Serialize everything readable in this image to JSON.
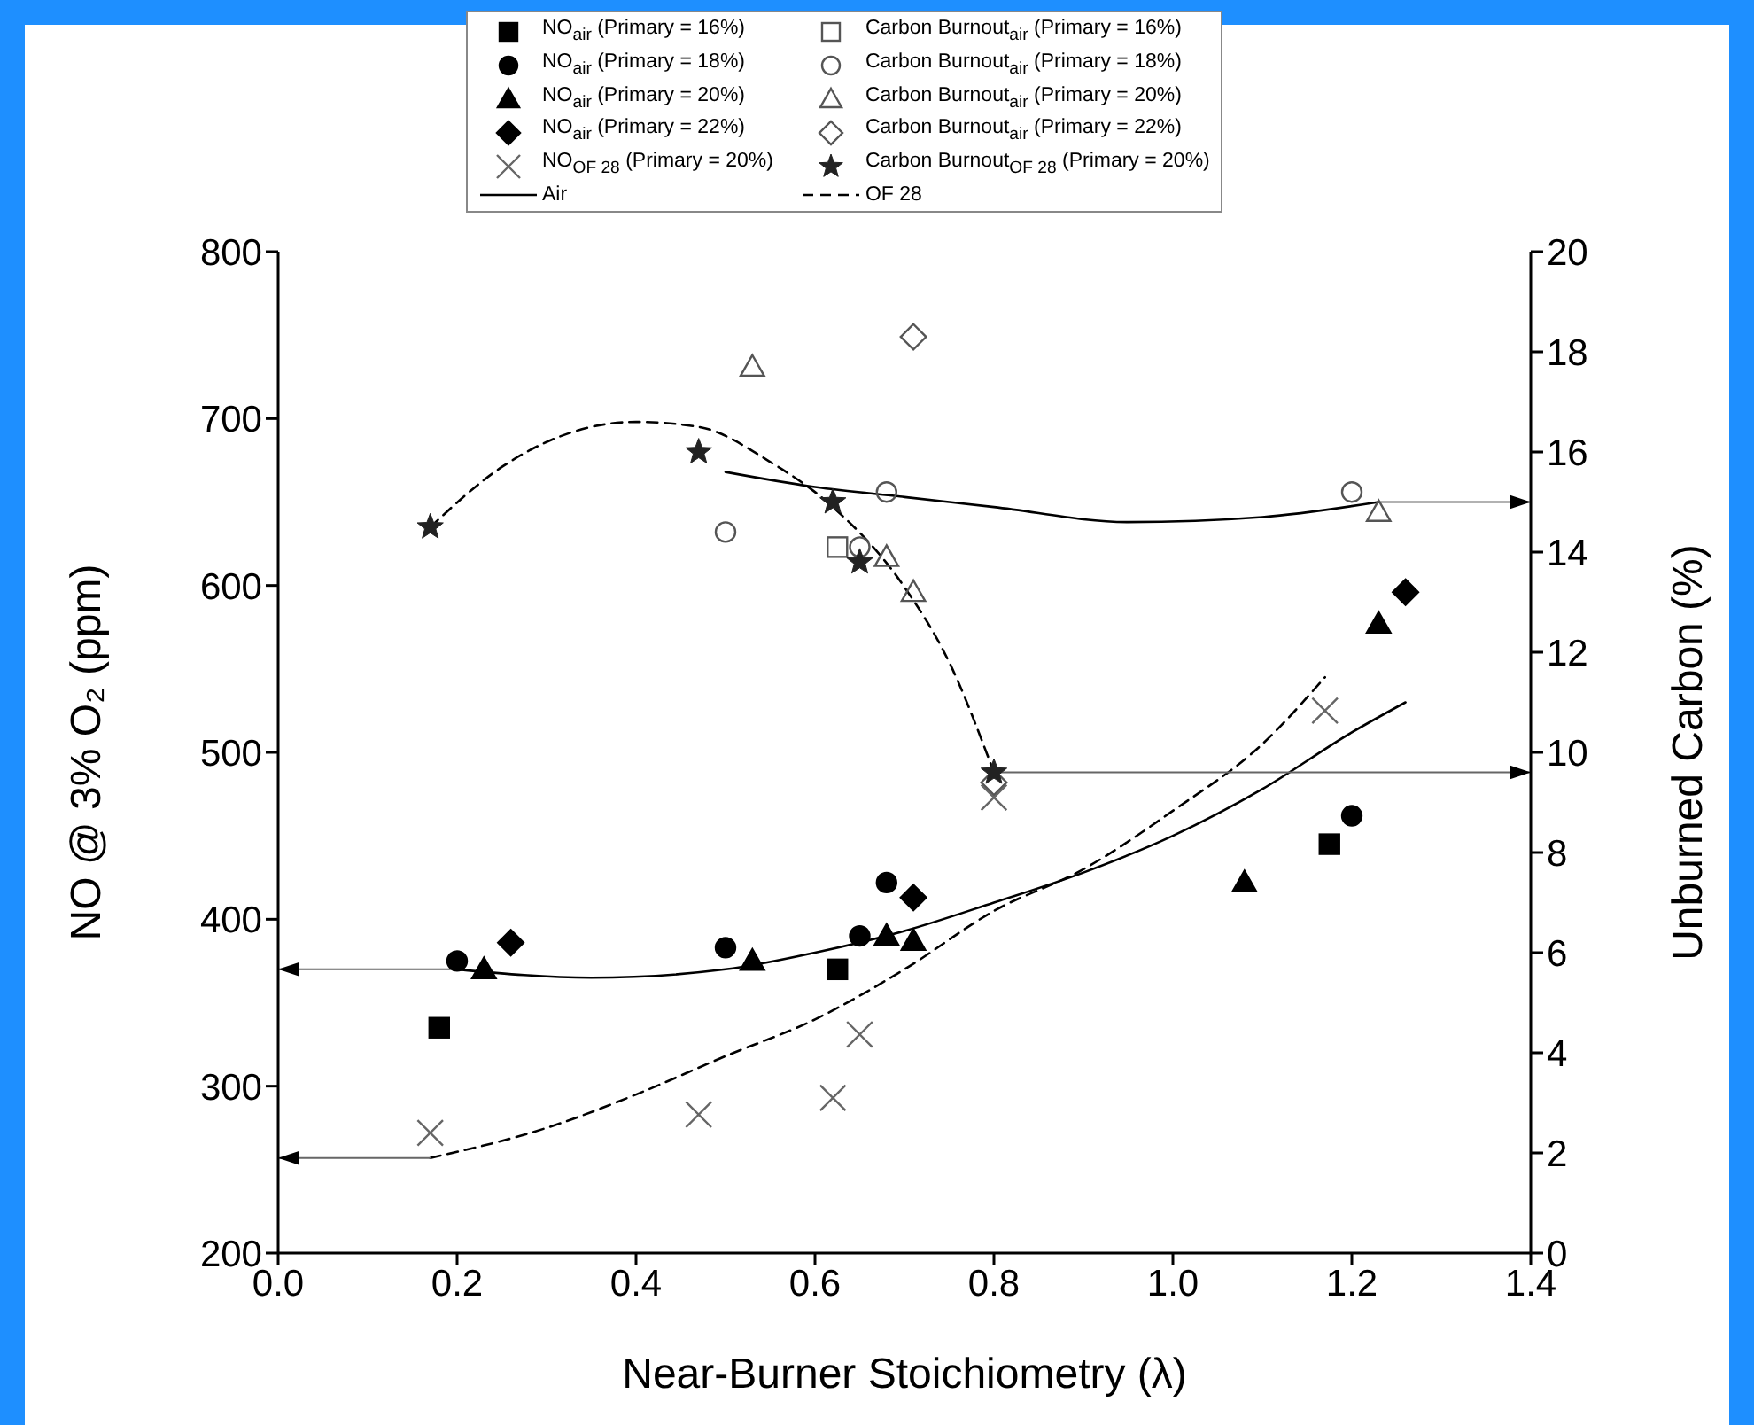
{
  "chart_data": {
    "type": "scatter",
    "xlabel": "Near-Burner Stoichiometry (λ)",
    "ylabel": "NO @ 3% O₂ (ppm)",
    "y2label": "Unburned Carbon (%)",
    "xlim": [
      0,
      1.4
    ],
    "xticks": [
      {
        "value": 0,
        "label": "0.0"
      },
      0.2,
      0.4,
      0.6,
      0.8,
      {
        "value": 1,
        "label": "1.0"
      },
      1.2,
      1.4
    ],
    "ylim": [
      200,
      800
    ],
    "yticks": [
      200,
      300,
      400,
      500,
      600,
      700,
      800
    ],
    "y2lim": [
      0,
      20
    ],
    "y2ticks": [
      0,
      2,
      4,
      6,
      8,
      10,
      12,
      14,
      16,
      18,
      20
    ],
    "legend": "top",
    "series": [
      {
        "name": "NO$_{air}$ (Primary = 16%)",
        "color": "#000000",
        "marker": "square",
        "x": [
          0.18,
          0.625,
          1.175
        ],
        "values": [
          335,
          370,
          445
        ]
      },
      {
        "name": "Carbon Burnout$_{air}$ (Primary = 16%)",
        "color": "#555555",
        "marker": "square",
        "axis": "y2",
        "x": [
          0.625
        ],
        "values": [
          14.1
        ]
      },
      {
        "name": "NO$_{air}$ (Primary = 18%)",
        "color": "#000000",
        "marker": "circle",
        "x": [
          0.2,
          0.5,
          0.65,
          0.68,
          1.2
        ],
        "values": [
          375,
          383,
          390,
          422,
          462
        ]
      },
      {
        "name": "Carbon Burnout$_{air}$ (Primary = 18%)",
        "color": "#555555",
        "marker": "circle",
        "axis": "y2",
        "x": [
          0.5,
          0.65,
          0.68,
          1.2
        ],
        "values": [
          14.4,
          14.1,
          15.2,
          15.2
        ]
      },
      {
        "name": "NO$_{air}$ (Primary = 20%)",
        "color": "#000000",
        "marker": "triangle",
        "x": [
          0.23,
          0.53,
          0.68,
          0.71,
          1.08,
          1.23
        ],
        "values": [
          370,
          375,
          390,
          387,
          422,
          577
        ]
      },
      {
        "name": "Carbon Burnout$_{air}$ (Primary = 20%)",
        "color": "#555555",
        "marker": "triangle",
        "axis": "y2",
        "x": [
          0.53,
          0.68,
          0.71,
          1.23
        ],
        "values": [
          17.7,
          13.9,
          13.2,
          14.8
        ]
      },
      {
        "name": "NO$_{air}$ (Primary = 22%)",
        "color": "#000000",
        "marker": "diamond",
        "x": [
          0.26,
          0.71,
          1.26
        ],
        "values": [
          386,
          413,
          596
        ]
      },
      {
        "name": "Carbon Burnout$_{air}$ (Primary = 22%)",
        "color": "#555555",
        "marker": "diamond",
        "axis": "y2",
        "x": [
          0.71,
          0.8
        ],
        "values": [
          18.3,
          9.4
        ]
      },
      {
        "name": "NO$_{OF 28}$ (Primary = 20%)",
        "color": "#666666",
        "marker": "cross",
        "x": [
          0.17,
          0.47,
          0.62,
          0.65,
          0.8,
          1.17
        ],
        "values": [
          272,
          283,
          293,
          331,
          473,
          525
        ]
      },
      {
        "name": "Carbon Burnout$_{OF 28}$ (Primary = 20%)",
        "color": "#222222",
        "marker": "star",
        "axis": "y2",
        "x": [
          0.17,
          0.47,
          0.62,
          0.65,
          0.8
        ],
        "values": [
          14.5,
          16.0,
          15.0,
          13.8,
          9.6
        ]
      },
      {
        "name": "Air",
        "type": "line",
        "color": "#000000",
        "marker": "none",
        "line_style": "solid",
        "x": [
          0.2,
          0.35,
          0.5,
          0.6,
          0.7,
          0.8,
          0.9,
          1.0,
          1.1,
          1.2,
          1.26
        ],
        "values": [
          370,
          365,
          370,
          380,
          393,
          410,
          428,
          450,
          478,
          512,
          530
        ]
      },
      {
        "name": "OF 28",
        "type": "line",
        "color": "#000000",
        "marker": "none",
        "line_style": "dashed",
        "x": [
          0.17,
          0.3,
          0.4,
          0.5,
          0.6,
          0.7,
          0.8,
          0.9,
          1.0,
          1.1,
          1.17
        ],
        "values": [
          257,
          275,
          295,
          318,
          340,
          370,
          405,
          430,
          465,
          505,
          545
        ]
      },
      {
        "type": "line",
        "color": "#000000",
        "marker": "none",
        "line_style": "solid",
        "axis": "y2",
        "x": [
          0.5,
          0.6,
          0.7,
          0.8,
          0.95,
          1.1,
          1.23
        ],
        "values": [
          15.6,
          15.3,
          15.1,
          14.9,
          14.6,
          14.7,
          15.0
        ]
      },
      {
        "type": "line",
        "color": "#000000",
        "marker": "none",
        "line_style": "dashed",
        "axis": "y2",
        "x": [
          0.17,
          0.25,
          0.3,
          0.4,
          0.47,
          0.55,
          0.62,
          0.7,
          0.75,
          0.8
        ],
        "values": [
          14.5,
          15.7,
          16.2,
          16.6,
          16.5,
          15.8,
          14.9,
          13.3,
          11.8,
          9.6
        ]
      },
      {
        "type": "line",
        "color": "#666666",
        "marker": "none",
        "line_style": "solid",
        "x": [
          0.2,
          0
        ],
        "values": [
          370,
          370
        ]
      },
      {
        "type": "line",
        "color": "#666666",
        "marker": "none",
        "line_style": "solid",
        "x": [
          0.17,
          0
        ],
        "values": [
          257,
          257
        ]
      },
      {
        "type": "line",
        "color": "#666666",
        "marker": "none",
        "line_style": "solid",
        "axis": "y2",
        "x": [
          1.23,
          1.4
        ],
        "values": [
          15.0,
          15.0
        ]
      },
      {
        "type": "line",
        "color": "#666666",
        "marker": "none",
        "line_style": "solid",
        "axis": "y2",
        "x": [
          0.8,
          1.4
        ],
        "values": [
          9.6,
          9.6
        ]
      }
    ]
  }
}
